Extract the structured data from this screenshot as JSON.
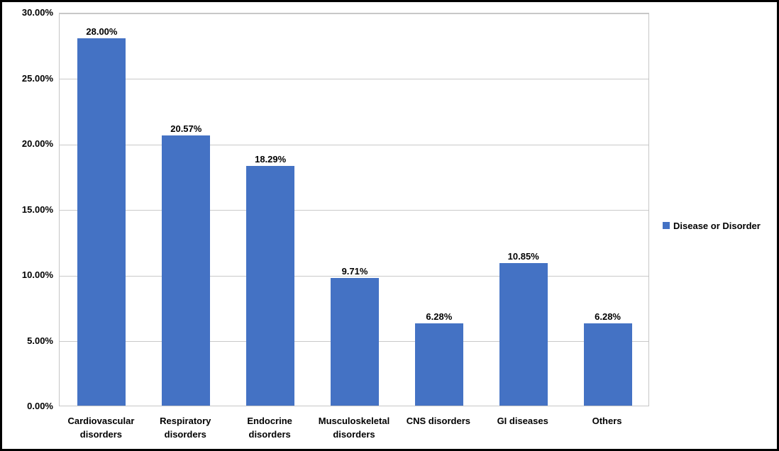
{
  "chart_data": {
    "type": "bar",
    "title": "",
    "xlabel": "",
    "ylabel": "",
    "categories": [
      "Cardiovascular disorders",
      "Respiratory disorders",
      "Endocrine disorders",
      "Musculoskeletal disorders",
      "CNS disorders",
      "GI diseases",
      "Others"
    ],
    "values": [
      28.0,
      20.57,
      18.29,
      9.71,
      6.28,
      10.85,
      6.28
    ],
    "bar_labels": [
      "28.00%",
      "20.57%",
      "18.29%",
      "9.71%",
      "6.28%",
      "10.85%",
      "6.28%"
    ],
    "y_axis": {
      "range": [
        0,
        30
      ],
      "ticks": [
        {
          "value": 30,
          "label": "30.00%"
        },
        {
          "value": 25,
          "label": "25.00%"
        },
        {
          "value": 20,
          "label": "20.00%"
        },
        {
          "value": 15,
          "label": "15.00%"
        },
        {
          "value": 10,
          "label": "10.00%"
        },
        {
          "value": 5,
          "label": "5.00%"
        },
        {
          "value": 0,
          "label": "0.00%"
        }
      ]
    },
    "grid": true,
    "legend": {
      "position": "right",
      "label": "Disease or Disorder",
      "marker": "square-icon"
    },
    "colors": {
      "bar": "#4472C4",
      "gridline": "#C9C9C9",
      "plot_border": "#C6C6C6",
      "text": "#000000",
      "frame_border": "#000000",
      "background": "#FFFFFF"
    }
  }
}
